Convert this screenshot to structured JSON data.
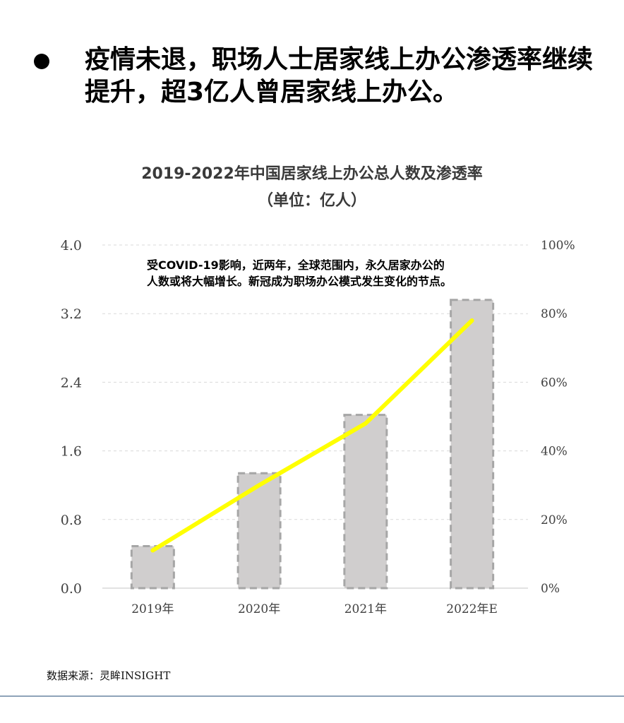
{
  "headline": {
    "text": "疫情未退，职场人士居家线上办公渗透率继续提升，超3亿人曾居家线上办公。"
  },
  "chart_data": {
    "type": "bar",
    "title": "2019-2022年中国居家线上办公总人数及渗透率",
    "subtitle": "（单位：亿人）",
    "categories": [
      "2019年",
      "2020年",
      "2021年",
      "2022年E"
    ],
    "series": [
      {
        "type": "bar",
        "axis": "left",
        "values": [
          0.49,
          1.34,
          2.02,
          3.36
        ]
      },
      {
        "type": "line",
        "axis": "right",
        "values": [
          11,
          30,
          48,
          78
        ]
      }
    ],
    "y_left": {
      "range": [
        0,
        4.0
      ],
      "ticks": [
        "0.0",
        "0.8",
        "1.6",
        "2.4",
        "3.2",
        "4.0"
      ]
    },
    "y_right": {
      "range": [
        0,
        100
      ],
      "ticks": [
        "0%",
        "20%",
        "40%",
        "60%",
        "80%",
        "100%"
      ]
    },
    "annotation": [
      "受COVID-19影响，近两年，全球范围内，永久居家办公的",
      "人数或将大幅增长。新冠成为职场办公模式发生变化的节点。"
    ],
    "grid": true,
    "colors": {
      "bar_fill": "#d0cece",
      "bar_stroke": "#a6a6a6",
      "line": "#ffff00",
      "grid": "#d9d9d9",
      "tick_text": "#404040"
    }
  },
  "source": "数据来源：灵眸INSIGHT"
}
